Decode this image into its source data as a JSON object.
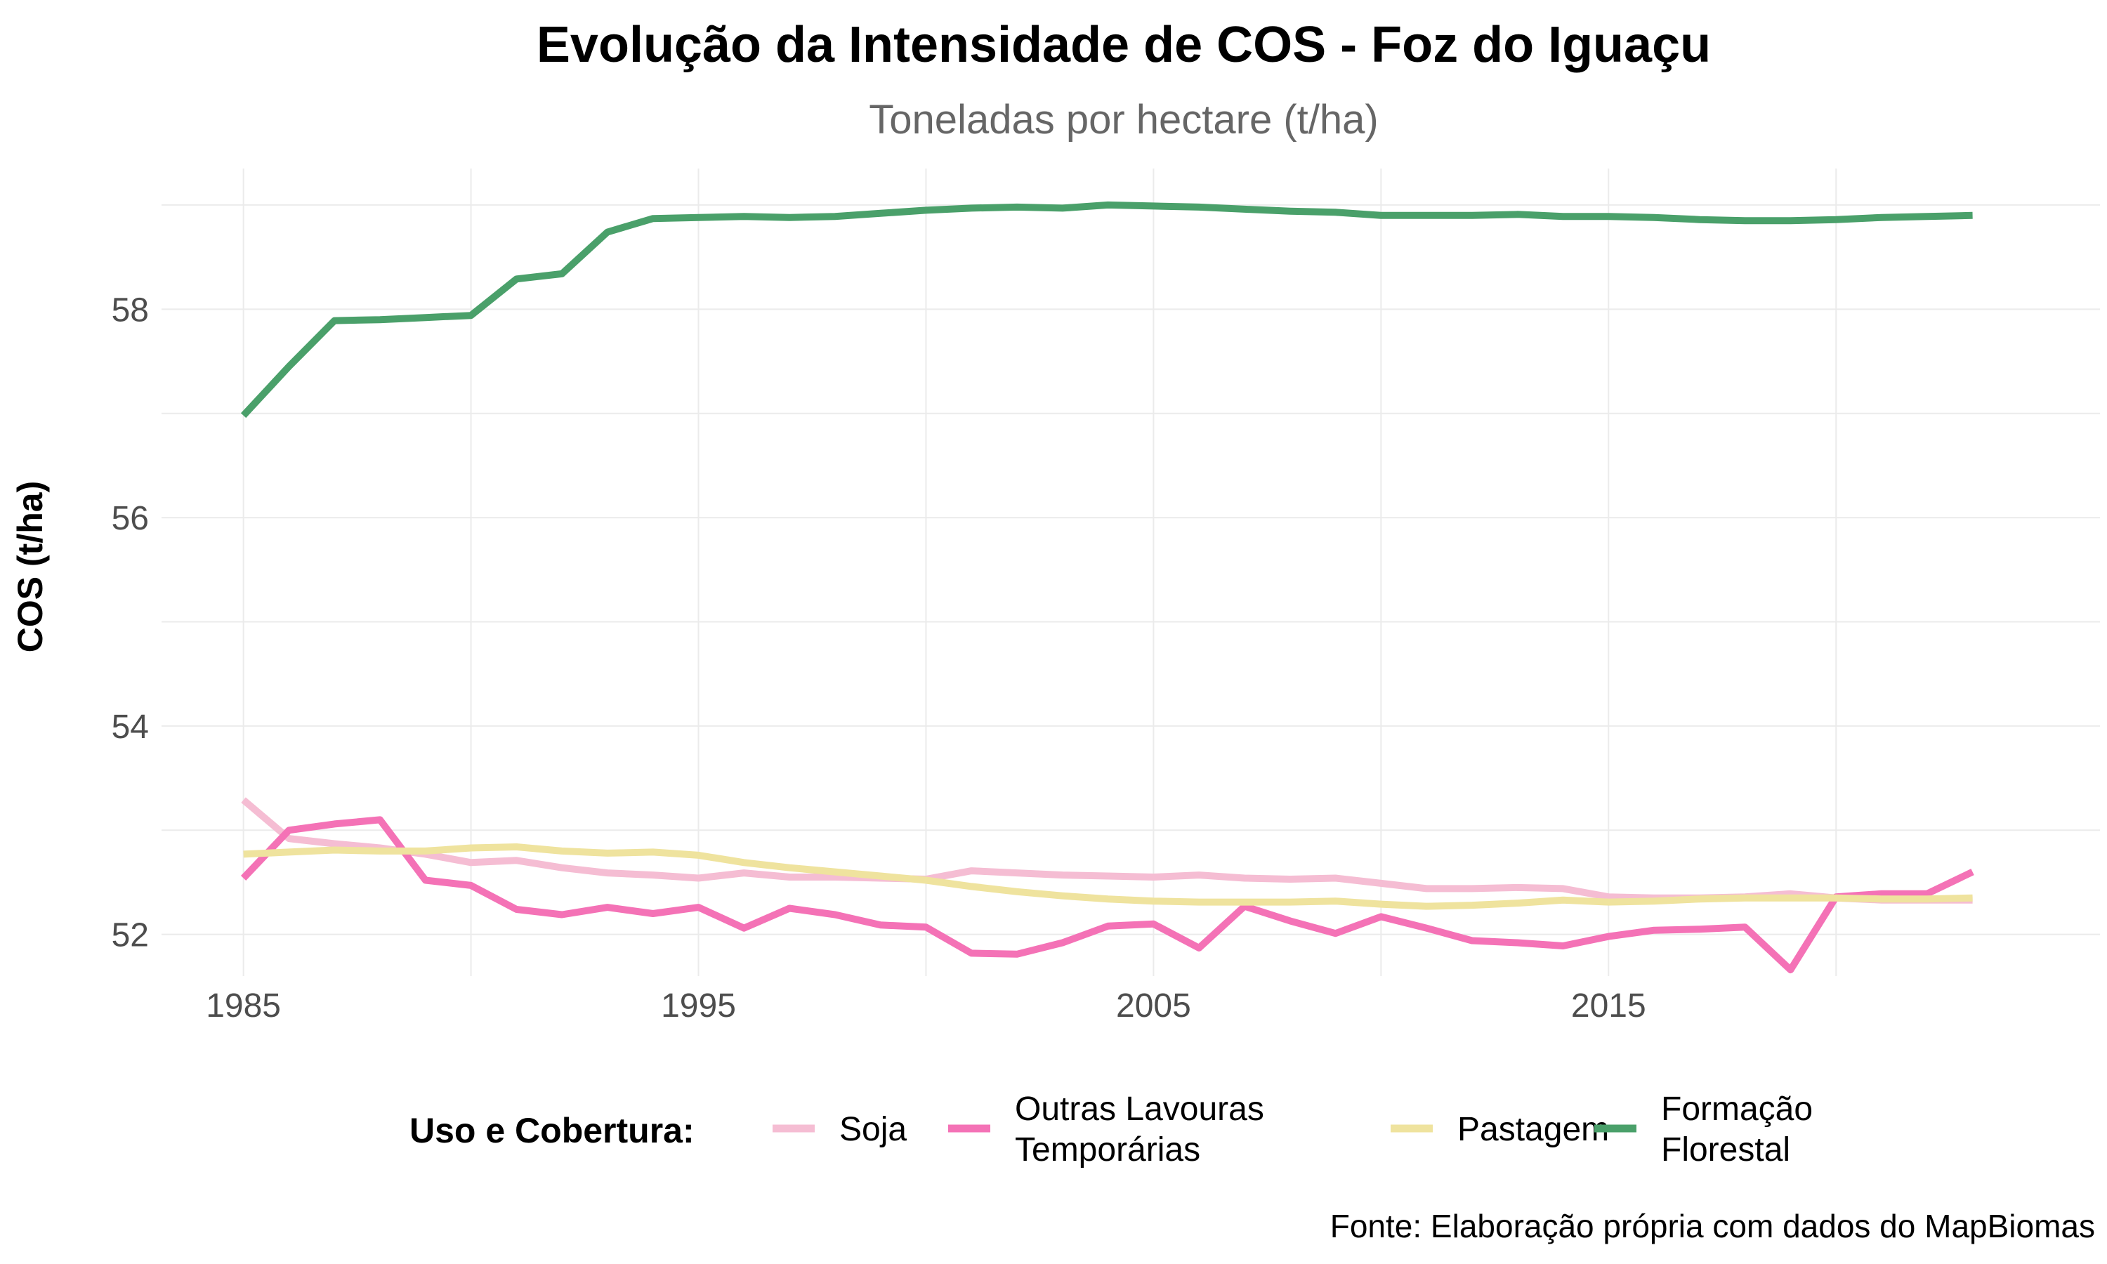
{
  "chart_data": {
    "type": "line",
    "title": "Evolução da Intensidade de COS - Foz do Iguaçu",
    "subtitle": "Toneladas por hectare (t/ha)",
    "xlabel": "",
    "ylabel": "COS (t/ha)",
    "caption": "Fonte: Elaboração própria com dados do MapBiomas",
    "legend_title": "Uso e Cobertura:",
    "legend_position": "bottom",
    "grid": true,
    "xlim": [
      1983.2,
      2025.8
    ],
    "ylim": [
      51.6,
      59.35
    ],
    "x_ticks": [
      1985,
      1995,
      2005,
      2015
    ],
    "y_ticks": [
      52,
      54,
      56,
      58
    ],
    "x": [
      1985,
      1986,
      1987,
      1988,
      1989,
      1990,
      1991,
      1992,
      1993,
      1994,
      1995,
      1996,
      1997,
      1998,
      1999,
      2000,
      2001,
      2002,
      2003,
      2004,
      2005,
      2006,
      2007,
      2008,
      2009,
      2010,
      2011,
      2012,
      2013,
      2014,
      2015,
      2016,
      2017,
      2018,
      2019,
      2020,
      2021,
      2022,
      2023
    ],
    "series": [
      {
        "name": "Soja",
        "legend_lines": [
          "Soja"
        ],
        "color": "#f5bdd3",
        "values": [
          53.29,
          52.92,
          52.87,
          52.83,
          52.77,
          52.69,
          52.71,
          52.64,
          52.59,
          52.57,
          52.54,
          52.59,
          52.55,
          52.55,
          52.54,
          52.53,
          52.61,
          52.59,
          52.57,
          52.56,
          52.55,
          52.57,
          52.54,
          52.53,
          52.54,
          52.49,
          52.44,
          52.44,
          52.45,
          52.44,
          52.36,
          52.35,
          52.35,
          52.36,
          52.39,
          52.35,
          52.33,
          52.33,
          52.33
        ]
      },
      {
        "name": "Outras Lavouras Temporárias",
        "legend_lines": [
          "Outras Lavouras",
          "Temporárias"
        ],
        "color": "#f472b6",
        "values": [
          52.54,
          53.0,
          53.06,
          53.1,
          52.52,
          52.47,
          52.24,
          52.19,
          52.26,
          52.2,
          52.26,
          52.06,
          52.25,
          52.19,
          52.09,
          52.07,
          51.82,
          51.81,
          51.92,
          52.08,
          52.1,
          51.87,
          52.27,
          52.13,
          52.01,
          52.17,
          52.06,
          51.94,
          51.92,
          51.89,
          51.98,
          52.04,
          52.05,
          52.07,
          51.66,
          52.36,
          52.39,
          52.39,
          52.6
        ]
      },
      {
        "name": "Pastagem",
        "legend_lines": [
          "Pastagem"
        ],
        "color": "#efe39e",
        "values": [
          52.77,
          52.79,
          52.81,
          52.8,
          52.8,
          52.83,
          52.84,
          52.8,
          52.78,
          52.79,
          52.76,
          52.69,
          52.64,
          52.6,
          52.56,
          52.52,
          52.46,
          52.41,
          52.37,
          52.34,
          52.32,
          52.31,
          52.31,
          52.31,
          52.32,
          52.29,
          52.27,
          52.28,
          52.3,
          52.33,
          52.31,
          52.32,
          52.34,
          52.35,
          52.35,
          52.35,
          52.34,
          52.34,
          52.35
        ]
      },
      {
        "name": "Formação Florestal",
        "legend_lines": [
          "Formação",
          "Florestal"
        ],
        "color": "#4aa06a",
        "values": [
          56.98,
          57.45,
          57.89,
          57.9,
          57.92,
          57.94,
          58.29,
          58.34,
          58.74,
          58.87,
          58.88,
          58.89,
          58.88,
          58.89,
          58.92,
          58.95,
          58.97,
          58.98,
          58.97,
          59.0,
          58.99,
          58.98,
          58.96,
          58.94,
          58.93,
          58.9,
          58.9,
          58.9,
          58.91,
          58.89,
          58.89,
          58.88,
          58.86,
          58.85,
          58.85,
          58.86,
          58.88,
          58.89,
          58.9
        ]
      }
    ]
  }
}
